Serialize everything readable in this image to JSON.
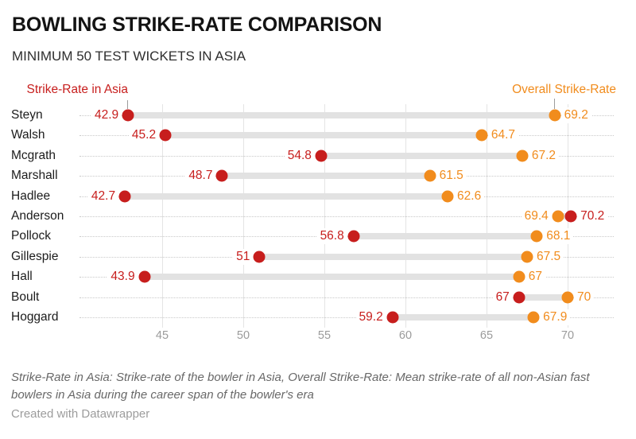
{
  "header": {
    "title": "BOWLING STRIKE-RATE COMPARISON",
    "subtitle": "MINIMUM 50 TEST WICKETS IN ASIA"
  },
  "legend": {
    "asia_label": "Strike-Rate in Asia",
    "overall_label": "Overall Strike-Rate"
  },
  "colors": {
    "asia_red": "#c71e1d",
    "overall_orange": "#f18c1d",
    "bar_gray": "#e2e2e2",
    "grid_gray": "#e4e4e4",
    "tick_text": "#9b9b9b"
  },
  "chart_data": {
    "type": "dumbbell",
    "title": "BOWLING STRIKE-RATE COMPARISON",
    "subtitle": "MINIMUM 50 TEST WICKETS IN ASIA",
    "categories": [
      "Steyn",
      "Walsh",
      "Mcgrath",
      "Marshall",
      "Hadlee",
      "Anderson",
      "Pollock",
      "Gillespie",
      "Hall",
      "Boult",
      "Hoggard"
    ],
    "series": [
      {
        "name": "Strike-Rate in Asia",
        "color": "#c71e1d",
        "values": [
          42.9,
          45.2,
          54.8,
          48.7,
          42.7,
          70.2,
          56.8,
          51,
          43.9,
          67,
          59.2
        ]
      },
      {
        "name": "Overall Strike-Rate",
        "color": "#f18c1d",
        "values": [
          69.2,
          64.7,
          67.2,
          61.5,
          62.6,
          69.4,
          68.1,
          67.5,
          67,
          70,
          67.9
        ]
      }
    ],
    "x_axis": {
      "ticks": [
        45,
        50,
        55,
        60,
        65,
        70
      ],
      "min": 42.7,
      "max": 70.2,
      "grid": true
    },
    "legend_position": "top"
  },
  "footer": {
    "notes": "Strike-Rate in Asia: Strike-rate of the bowler in Asia, Overall Strike-Rate: Mean strike-rate of all non-Asian fast bowlers in Asia during the career span of the bowler's era",
    "credit": "Created with Datawrapper"
  }
}
